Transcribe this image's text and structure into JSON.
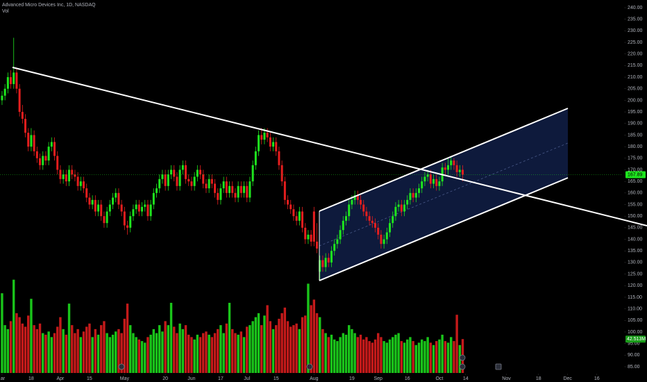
{
  "chart_data": {
    "type": "candlestick",
    "title": "Advanced Micro Devices Inc, 1D, NASDAQ",
    "up_color": "#1ee61e",
    "down_color": "#e61e1e",
    "candles": [
      [
        200,
        204,
        198,
        202
      ],
      [
        202,
        207,
        200,
        205
      ],
      [
        205,
        212,
        203,
        210
      ],
      [
        210,
        213,
        205,
        207
      ],
      [
        207,
        227,
        205,
        212
      ],
      [
        212,
        214,
        203,
        205
      ],
      [
        205,
        207,
        193,
        195
      ],
      [
        195,
        198,
        190,
        192
      ],
      [
        192,
        194,
        184,
        186
      ],
      [
        186,
        188,
        178,
        180
      ],
      [
        180,
        188,
        178,
        185
      ],
      [
        185,
        187,
        176,
        178
      ],
      [
        178,
        180,
        173,
        175
      ],
      [
        175,
        177,
        170,
        172
      ],
      [
        172,
        178,
        170,
        176
      ],
      [
        176,
        178,
        172,
        174
      ],
      [
        174,
        182,
        172,
        180
      ],
      [
        180,
        184,
        178,
        182
      ],
      [
        182,
        184,
        174,
        176
      ],
      [
        176,
        178,
        168,
        170
      ],
      [
        170,
        172,
        164,
        166
      ],
      [
        166,
        170,
        164,
        168
      ],
      [
        168,
        170,
        163,
        165
      ],
      [
        165,
        172,
        163,
        170
      ],
      [
        170,
        172,
        166,
        168
      ],
      [
        168,
        170,
        165,
        167
      ],
      [
        167,
        169,
        161,
        163
      ],
      [
        163,
        167,
        161,
        165
      ],
      [
        165,
        167,
        160,
        162
      ],
      [
        162,
        164,
        156,
        158
      ],
      [
        158,
        160,
        153,
        155
      ],
      [
        155,
        159,
        153,
        157
      ],
      [
        157,
        159,
        150,
        152
      ],
      [
        152,
        157,
        150,
        155
      ],
      [
        155,
        157,
        148,
        150
      ],
      [
        150,
        152,
        145,
        147
      ],
      [
        147,
        154,
        145,
        152
      ],
      [
        152,
        157,
        150,
        155
      ],
      [
        155,
        160,
        153,
        158
      ],
      [
        158,
        162,
        156,
        160
      ],
      [
        160,
        162,
        153,
        155
      ],
      [
        155,
        157,
        150,
        152
      ],
      [
        152,
        154,
        144,
        146
      ],
      [
        146,
        148,
        142,
        145
      ],
      [
        145,
        152,
        143,
        150
      ],
      [
        150,
        155,
        148,
        153
      ],
      [
        153,
        157,
        151,
        155
      ],
      [
        155,
        157,
        150,
        152
      ],
      [
        152,
        156,
        150,
        154
      ],
      [
        154,
        157,
        152,
        155
      ],
      [
        155,
        157,
        148,
        150
      ],
      [
        150,
        157,
        148,
        155
      ],
      [
        155,
        162,
        153,
        160
      ],
      [
        160,
        164,
        158,
        162
      ],
      [
        162,
        168,
        160,
        166
      ],
      [
        166,
        170,
        164,
        168
      ],
      [
        168,
        170,
        161,
        163
      ],
      [
        163,
        170,
        161,
        168
      ],
      [
        168,
        172,
        166,
        170
      ],
      [
        170,
        172,
        165,
        167
      ],
      [
        167,
        169,
        161,
        163
      ],
      [
        163,
        172,
        161,
        170
      ],
      [
        170,
        174,
        168,
        172
      ],
      [
        172,
        174,
        164,
        166
      ],
      [
        166,
        168,
        163,
        165
      ],
      [
        165,
        167,
        161,
        163
      ],
      [
        163,
        169,
        161,
        167
      ],
      [
        167,
        172,
        165,
        170
      ],
      [
        170,
        172,
        166,
        168
      ],
      [
        168,
        170,
        162,
        164
      ],
      [
        164,
        166,
        160,
        162
      ],
      [
        162,
        168,
        160,
        166
      ],
      [
        166,
        168,
        162,
        164
      ],
      [
        164,
        166,
        158,
        160
      ],
      [
        160,
        162,
        155,
        157
      ],
      [
        157,
        164,
        155,
        162
      ],
      [
        162,
        167,
        160,
        165
      ],
      [
        165,
        167,
        158,
        160
      ],
      [
        160,
        165,
        158,
        163
      ],
      [
        163,
        165,
        158,
        160
      ],
      [
        160,
        162,
        156,
        158
      ],
      [
        158,
        165,
        156,
        163
      ],
      [
        163,
        165,
        158,
        160
      ],
      [
        160,
        165,
        158,
        163
      ],
      [
        163,
        165,
        156,
        158
      ],
      [
        158,
        167,
        156,
        165
      ],
      [
        165,
        174,
        163,
        172
      ],
      [
        172,
        180,
        170,
        178
      ],
      [
        178,
        187,
        176,
        185
      ],
      [
        185,
        188,
        181,
        183
      ],
      [
        183,
        188,
        181,
        186
      ],
      [
        186,
        188,
        182,
        184
      ],
      [
        184,
        186,
        178,
        180
      ],
      [
        180,
        184,
        178,
        182
      ],
      [
        182,
        184,
        176,
        178
      ],
      [
        178,
        180,
        170,
        172
      ],
      [
        172,
        174,
        163,
        165
      ],
      [
        165,
        167,
        155,
        157
      ],
      [
        157,
        159,
        153,
        155
      ],
      [
        155,
        157,
        151,
        153
      ],
      [
        153,
        155,
        148,
        150
      ],
      [
        150,
        152,
        146,
        148
      ],
      [
        148,
        154,
        146,
        152
      ],
      [
        152,
        154,
        143,
        145
      ],
      [
        145,
        147,
        138,
        140
      ],
      [
        140,
        144,
        138,
        142
      ],
      [
        142,
        144,
        137,
        139
      ],
      [
        152,
        154,
        137,
        139
      ],
      [
        139,
        147,
        134,
        136
      ],
      [
        126,
        133,
        122,
        131
      ],
      [
        131,
        133,
        126,
        128
      ],
      [
        128,
        134,
        126,
        132
      ],
      [
        132,
        134,
        128,
        130
      ],
      [
        130,
        137,
        128,
        135
      ],
      [
        135,
        140,
        133,
        138
      ],
      [
        138,
        142,
        136,
        140
      ],
      [
        140,
        146,
        138,
        144
      ],
      [
        144,
        150,
        142,
        148
      ],
      [
        148,
        152,
        146,
        150
      ],
      [
        150,
        157,
        148,
        155
      ],
      [
        155,
        159,
        153,
        157
      ],
      [
        157,
        161,
        155,
        159
      ],
      [
        159,
        161,
        155,
        157
      ],
      [
        157,
        159,
        153,
        155
      ],
      [
        155,
        157,
        150,
        152
      ],
      [
        152,
        154,
        148,
        150
      ],
      [
        150,
        152,
        146,
        148
      ],
      [
        148,
        150,
        145,
        147
      ],
      [
        147,
        149,
        143,
        145
      ],
      [
        145,
        147,
        140,
        142
      ],
      [
        142,
        144,
        136,
        138
      ],
      [
        138,
        142,
        136,
        140
      ],
      [
        140,
        145,
        138,
        143
      ],
      [
        143,
        149,
        141,
        147
      ],
      [
        147,
        152,
        145,
        150
      ],
      [
        150,
        156,
        148,
        154
      ],
      [
        154,
        157,
        152,
        155
      ],
      [
        155,
        157,
        150,
        152
      ],
      [
        152,
        157,
        150,
        155
      ],
      [
        155,
        159,
        153,
        157
      ],
      [
        157,
        162,
        155,
        160
      ],
      [
        160,
        162,
        156,
        158
      ],
      [
        158,
        162,
        156,
        160
      ],
      [
        160,
        164,
        158,
        162
      ],
      [
        162,
        167,
        160,
        165
      ],
      [
        165,
        169,
        163,
        167
      ],
      [
        167,
        170,
        165,
        168
      ],
      [
        168,
        170,
        162,
        164
      ],
      [
        164,
        168,
        162,
        166
      ],
      [
        166,
        168,
        161,
        163
      ],
      [
        163,
        167,
        161,
        165
      ],
      [
        165,
        173,
        163,
        171
      ],
      [
        171,
        173,
        168,
        170
      ],
      [
        170,
        175,
        168,
        172
      ],
      [
        172,
        176,
        170,
        174
      ],
      [
        174,
        175,
        170,
        172
      ],
      [
        172,
        174,
        167,
        169
      ],
      [
        169,
        172,
        167,
        170
      ],
      [
        170,
        172,
        165,
        167.89
      ]
    ],
    "volume": {
      "name": "Vol",
      "last_label": "42.513M",
      "values": [
        100,
        60,
        55,
        65,
        117,
        75,
        70,
        62,
        58,
        72,
        93,
        60,
        55,
        62,
        50,
        48,
        52,
        45,
        50,
        58,
        70,
        55,
        48,
        87,
        60,
        50,
        55,
        45,
        52,
        58,
        62,
        45,
        55,
        48,
        60,
        65,
        50,
        45,
        48,
        52,
        55,
        50,
        68,
        87,
        60,
        50,
        45,
        42,
        40,
        38,
        45,
        48,
        55,
        50,
        60,
        52,
        65,
        60,
        88,
        58,
        50,
        62,
        55,
        60,
        48,
        45,
        42,
        48,
        45,
        50,
        52,
        48,
        45,
        50,
        55,
        60,
        50,
        62,
        88,
        55,
        50,
        48,
        52,
        45,
        58,
        60,
        65,
        70,
        75,
        60,
        72,
        85,
        65,
        55,
        60,
        68,
        75,
        82,
        65,
        58,
        60,
        62,
        55,
        70,
        72,
        112,
        85,
        92,
        75,
        70,
        55,
        50,
        45,
        48,
        42,
        40,
        45,
        50,
        48,
        60,
        55,
        50,
        45,
        48,
        42,
        45,
        40,
        38,
        42,
        50,
        45,
        40,
        38,
        42,
        45,
        48,
        50,
        40,
        38,
        42,
        45,
        40,
        35,
        38,
        42,
        40,
        45,
        38,
        35,
        40,
        42,
        48,
        40,
        38,
        45,
        40,
        73,
        35,
        42.513
      ]
    },
    "last_price": 167.89,
    "xlim": [
      -0.7,
      212.4
    ],
    "ylim": [
      82.3,
      243.3
    ],
    "xticks": [
      {
        "value": 0,
        "label": "ar"
      },
      {
        "value": 10,
        "label": "18"
      },
      {
        "value": 20,
        "label": "Apr"
      },
      {
        "value": 30,
        "label": "15"
      },
      {
        "value": 42,
        "label": "May"
      },
      {
        "value": 56,
        "label": "20"
      },
      {
        "value": 65,
        "label": "Jun"
      },
      {
        "value": 75,
        "label": "17"
      },
      {
        "value": 84,
        "label": "Jul"
      },
      {
        "value": 94,
        "label": "15"
      },
      {
        "value": 107,
        "label": "Aug"
      },
      {
        "value": 120,
        "label": "19"
      },
      {
        "value": 129,
        "label": "Sep"
      },
      {
        "value": 139,
        "label": "16"
      },
      {
        "value": 150,
        "label": "Oct"
      },
      {
        "value": 159,
        "label": "14"
      },
      {
        "value": 173,
        "label": "Nov"
      },
      {
        "value": 184,
        "label": "18"
      },
      {
        "value": 194,
        "label": "Dec"
      },
      {
        "value": 204,
        "label": "16"
      }
    ],
    "yticks": [
      {
        "value": 240,
        "label": "240.00"
      },
      {
        "value": 235,
        "label": "235.00"
      },
      {
        "value": 230,
        "label": "230.00"
      },
      {
        "value": 225,
        "label": "225.00"
      },
      {
        "value": 220,
        "label": "220.00"
      },
      {
        "value": 215,
        "label": "215.00"
      },
      {
        "value": 210,
        "label": "210.00"
      },
      {
        "value": 205,
        "label": "205.00"
      },
      {
        "value": 200,
        "label": "200.00"
      },
      {
        "value": 195,
        "label": "195.00"
      },
      {
        "value": 190,
        "label": "190.00"
      },
      {
        "value": 185,
        "label": "185.00"
      },
      {
        "value": 180,
        "label": "180.00"
      },
      {
        "value": 175,
        "label": "175.00"
      },
      {
        "value": 170,
        "label": "170.00"
      },
      {
        "value": 165,
        "label": "165.00"
      },
      {
        "value": 160,
        "label": "160.00"
      },
      {
        "value": 155,
        "label": "155.00"
      },
      {
        "value": 150,
        "label": "150.00"
      },
      {
        "value": 145,
        "label": "145.00"
      },
      {
        "value": 140,
        "label": "140.00"
      },
      {
        "value": 135,
        "label": "135.00"
      },
      {
        "value": 130,
        "label": "130.00"
      },
      {
        "value": 125,
        "label": "125.00"
      },
      {
        "value": 120,
        "label": "120.00"
      },
      {
        "value": 115,
        "label": "115.00"
      },
      {
        "value": 110,
        "label": "110.00"
      },
      {
        "value": 105,
        "label": "105.00"
      },
      {
        "value": 100,
        "label": "100.00"
      },
      {
        "value": 95,
        "label": "95.00"
      },
      {
        "value": 90,
        "label": "90.00"
      },
      {
        "value": 85,
        "label": "85.00"
      }
    ]
  }
}
